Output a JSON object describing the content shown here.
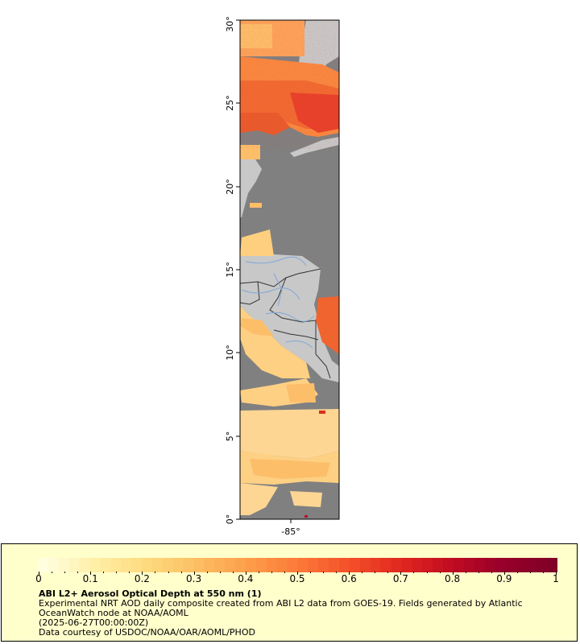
{
  "map": {
    "lat_ticks": [
      "0°",
      "5°",
      "10°",
      "15°",
      "20°",
      "25°",
      "30°"
    ],
    "lon_tick": "-85°",
    "colors": {
      "ocean": "#808080",
      "land": "#c8c8c8",
      "rivers": "#7fa8d8",
      "borders": "#333333"
    }
  },
  "legend": {
    "title": "ABI L2+ Aerosol Optical Depth at 550 nm (1)",
    "line1": "Experimental NRT AOD daily composite created from ABI L2 data from GOES-19. Fields generated by Atlantic",
    "line2": "OceanWatch node at NOAA/AOML",
    "line3": "(2025-06-27T00:00:00Z)",
    "line4": "Data courtesy of USDOC/NOAA/OAR/AOML/PHOD",
    "scale_labels": [
      "0",
      "0.1",
      "0.2",
      "0.3",
      "0.4",
      "0.5",
      "0.6",
      "0.7",
      "0.8",
      "0.9",
      "1"
    ],
    "scale_min": 0,
    "scale_max": 1,
    "colorbar": [
      "#ffffe0",
      "#ffefa8",
      "#fedb7f",
      "#fdbf63",
      "#fd9e4b",
      "#fc7a38",
      "#f4512a",
      "#e1281f",
      "#c20c22",
      "#98002a",
      "#800026"
    ]
  }
}
